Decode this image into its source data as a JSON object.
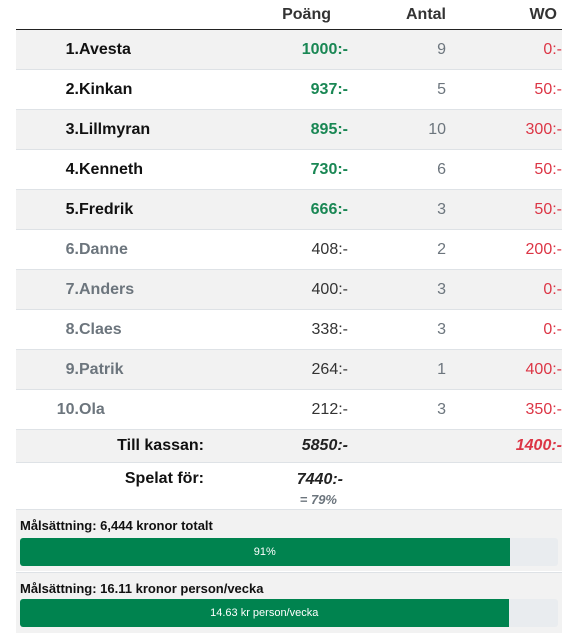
{
  "headers": {
    "points": "Poäng",
    "count": "Antal",
    "wo": "WO"
  },
  "players": [
    {
      "rank": "1.",
      "name": "Avesta",
      "points": "1000:-",
      "count": "9",
      "wo": "0:-",
      "top": true
    },
    {
      "rank": "2.",
      "name": "Kinkan",
      "points": "937:-",
      "count": "5",
      "wo": "50:-",
      "top": true
    },
    {
      "rank": "3.",
      "name": "Lillmyran",
      "points": "895:-",
      "count": "10",
      "wo": "300:-",
      "top": true
    },
    {
      "rank": "4.",
      "name": "Kenneth",
      "points": "730:-",
      "count": "6",
      "wo": "50:-",
      "top": true
    },
    {
      "rank": "5.",
      "name": "Fredrik",
      "points": "666:-",
      "count": "3",
      "wo": "50:-",
      "top": true
    },
    {
      "rank": "6.",
      "name": "Danne",
      "points": "408:-",
      "count": "2",
      "wo": "200:-",
      "top": false
    },
    {
      "rank": "7.",
      "name": "Anders",
      "points": "400:-",
      "count": "3",
      "wo": "0:-",
      "top": false
    },
    {
      "rank": "8.",
      "name": "Claes",
      "points": "338:-",
      "count": "3",
      "wo": "0:-",
      "top": false
    },
    {
      "rank": "9.",
      "name": "Patrik",
      "points": "264:-",
      "count": "1",
      "wo": "400:-",
      "top": false
    },
    {
      "rank": "10.",
      "name": "Ola",
      "points": "212:-",
      "count": "3",
      "wo": "350:-",
      "top": false
    }
  ],
  "summary": {
    "kassan_label": "Till kassan:",
    "kassan_points": "5850:-",
    "kassan_wo": "1400:-",
    "played_label": "Spelat för:",
    "played_points": "7440:-",
    "played_pct": "= 79%"
  },
  "goals": [
    {
      "title": "Målsättning: 6,444 kronor totalt",
      "bar_label": "91%",
      "progress": 0.91
    },
    {
      "title": "Målsättning: 16.11 kronor person/vecka",
      "bar_label": "14.63 kr person/vecka",
      "progress": 0.908
    }
  ],
  "colors": {
    "accent_green": "#198754",
    "bar_green": "#00834f",
    "wo_red": "#dc3545"
  }
}
